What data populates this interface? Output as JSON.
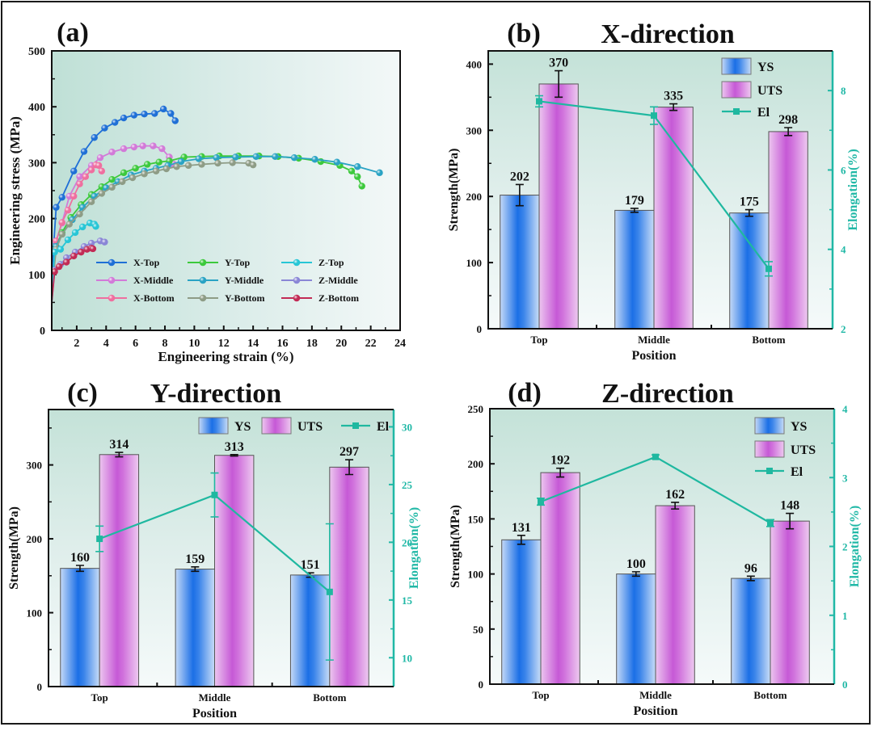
{
  "chart_data": [
    {
      "id": "a",
      "type": "line",
      "panel_label": "(a)",
      "title": "",
      "xlabel": "Engineering strain (%)",
      "ylabel": "Engineering stress (MPa)",
      "xlim": [
        0.3,
        24
      ],
      "ylim": [
        0,
        500
      ],
      "xticks": [
        2,
        4,
        6,
        8,
        10,
        12,
        14,
        16,
        18,
        20,
        22,
        24
      ],
      "yticks": [
        0,
        100,
        200,
        300,
        400,
        500
      ],
      "legend_position": "bottom-center, 3 columns",
      "series": [
        {
          "name": "X-Top",
          "color": "#1f6fd6",
          "x": [
            0.3,
            0.6,
            1.0,
            1.8,
            2.5,
            3.2,
            3.9,
            4.6,
            5.2,
            5.9,
            6.6,
            7.3,
            7.9,
            8.4,
            8.7
          ],
          "y": [
            100,
            220,
            238,
            285,
            320,
            345,
            362,
            372,
            380,
            385,
            387,
            388,
            396,
            388,
            375
          ]
        },
        {
          "name": "X-Middle",
          "color": "#d27ad8",
          "x": [
            0.3,
            0.6,
            1.0,
            1.5,
            2.2,
            3.0,
            3.6,
            4.4,
            5.2,
            5.9,
            6.5,
            7.2,
            7.8,
            8.3,
            8.6
          ],
          "y": [
            60,
            160,
            192,
            240,
            275,
            295,
            309,
            319,
            325,
            328,
            330,
            330,
            325,
            310,
            297
          ]
        },
        {
          "name": "X-Bottom",
          "color": "#ef6f9f",
          "x": [
            0.3,
            0.6,
            1.0,
            1.4,
            1.8,
            2.2,
            2.6,
            3.0,
            3.3,
            3.5,
            3.7
          ],
          "y": [
            50,
            160,
            193,
            215,
            240,
            262,
            275,
            287,
            296,
            295,
            285
          ]
        },
        {
          "name": "Y-Top",
          "color": "#3cc93c",
          "x": [
            0.3,
            0.6,
            1.0,
            1.6,
            2.3,
            3.0,
            3.7,
            4.4,
            5.2,
            6.0,
            6.8,
            7.6,
            8.3,
            9.3,
            10.5,
            11.7,
            13.0,
            14.4,
            15.7,
            17.1,
            18.6,
            19.9,
            20.7,
            21.1,
            21.4
          ],
          "y": [
            80,
            150,
            175,
            202,
            225,
            243,
            257,
            270,
            282,
            290,
            297,
            301,
            303,
            310,
            311,
            312,
            312,
            312,
            311,
            308,
            302,
            295,
            285,
            275,
            258
          ]
        },
        {
          "name": "Y-Middle",
          "color": "#2aa3c4",
          "x": [
            0.3,
            0.6,
            1.0,
            1.7,
            2.4,
            3.2,
            4.0,
            4.8,
            5.7,
            6.6,
            7.4,
            8.2,
            9.1,
            10.3,
            11.5,
            12.8,
            14.2,
            15.5,
            16.8,
            18.2,
            19.7,
            21.1,
            22.6
          ],
          "y": [
            75,
            150,
            172,
            198,
            220,
            240,
            255,
            266,
            278,
            285,
            290,
            295,
            302,
            307,
            309,
            310,
            311,
            311,
            309,
            306,
            301,
            293,
            282
          ]
        },
        {
          "name": "Y-Bottom",
          "color": "#8e9c86",
          "x": [
            0.3,
            0.6,
            1.0,
            1.5,
            2.2,
            3.0,
            3.7,
            4.4,
            5.1,
            5.8,
            6.6,
            7.4,
            8.1,
            8.8,
            9.6,
            10.5,
            11.6,
            12.6,
            13.7,
            14.0
          ],
          "y": [
            70,
            145,
            172,
            190,
            208,
            230,
            245,
            256,
            266,
            273,
            280,
            285,
            289,
            293,
            295,
            297,
            299,
            300,
            299,
            296
          ]
        },
        {
          "name": "Z-Top",
          "color": "#27c6d6",
          "x": [
            0.3,
            0.5,
            0.9,
            1.4,
            1.9,
            2.4,
            2.9,
            3.2,
            3.3
          ],
          "y": [
            60,
            140,
            145,
            162,
            175,
            185,
            192,
            190,
            186
          ]
        },
        {
          "name": "Z-Middle",
          "color": "#8a86d6",
          "x": [
            0.3,
            0.5,
            0.9,
            1.3,
            1.9,
            2.5,
            3.0,
            3.6,
            3.9
          ],
          "y": [
            50,
            108,
            118,
            130,
            140,
            150,
            156,
            160,
            158
          ]
        },
        {
          "name": "Z-Bottom",
          "color": "#c22b55",
          "x": [
            0.3,
            0.5,
            0.8,
            1.3,
            1.8,
            2.3,
            2.7,
            3.0,
            3.1
          ],
          "y": [
            50,
            105,
            114,
            122,
            133,
            140,
            145,
            147,
            146
          ]
        }
      ]
    },
    {
      "id": "b",
      "type": "bar",
      "panel_label": "(b)",
      "title": "X-direction",
      "categories": [
        "Top",
        "Middle",
        "Bottom"
      ],
      "xlabel": "Position",
      "ylabel": "Strength(MPa)",
      "y2label": "Elongation(%)",
      "ylim": [
        0,
        420
      ],
      "yticks": [
        0,
        100,
        200,
        300,
        400
      ],
      "y2lim": [
        2,
        9
      ],
      "y2ticks": [
        2,
        4,
        6,
        8
      ],
      "legend_position": "top-right, vertical",
      "series": [
        {
          "name": "YS",
          "kind": "bar",
          "values": [
            202,
            179,
            175
          ],
          "errors": [
            16,
            3,
            5
          ]
        },
        {
          "name": "UTS",
          "kind": "bar",
          "values": [
            370,
            335,
            298
          ],
          "errors": [
            20,
            5,
            6
          ]
        },
        {
          "name": "El",
          "kind": "line",
          "axis": "right",
          "values": [
            7.73,
            7.37,
            3.51
          ],
          "errors": [
            0.14,
            0.22,
            0.18
          ]
        }
      ]
    },
    {
      "id": "c",
      "type": "bar",
      "panel_label": "(c)",
      "title": "Y-direction",
      "categories": [
        "Top",
        "Middle",
        "Bottom"
      ],
      "xlabel": "Position",
      "ylabel": "Strength(MPa)",
      "y2label": "Elongation(%)",
      "ylim": [
        0,
        375
      ],
      "yticks": [
        0,
        100,
        200,
        300
      ],
      "y2lim": [
        7.5,
        31.5
      ],
      "y2ticks": [
        10,
        15,
        20,
        25,
        30
      ],
      "legend_position": "top-right, horizontal",
      "series": [
        {
          "name": "YS",
          "kind": "bar",
          "values": [
            160,
            159,
            151
          ],
          "errors": [
            4,
            3,
            3
          ]
        },
        {
          "name": "UTS",
          "kind": "bar",
          "values": [
            314,
            313,
            297
          ],
          "errors": [
            3,
            1,
            10
          ]
        },
        {
          "name": "El",
          "kind": "line",
          "axis": "right",
          "values": [
            20.3,
            24.1,
            15.7
          ],
          "errors": [
            1.1,
            1.9,
            5.9
          ]
        }
      ]
    },
    {
      "id": "d",
      "type": "bar",
      "panel_label": "(d)",
      "title": "Z-direction",
      "categories": [
        "Top",
        "Middle",
        "Bottom"
      ],
      "xlabel": "Position",
      "ylabel": "Strength(MPa)",
      "y2label": "Elongation(%)",
      "ylim": [
        0,
        250
      ],
      "yticks": [
        0,
        50,
        100,
        150,
        200,
        250
      ],
      "y2lim": [
        0,
        4
      ],
      "y2ticks": [
        0,
        1,
        2,
        3,
        4
      ],
      "legend_position": "top-right, vertical",
      "series": [
        {
          "name": "YS",
          "kind": "bar",
          "values": [
            131,
            100,
            96
          ],
          "errors": [
            4,
            2,
            2
          ]
        },
        {
          "name": "UTS",
          "kind": "bar",
          "values": [
            192,
            162,
            148
          ],
          "errors": [
            4,
            3,
            7
          ]
        },
        {
          "name": "El",
          "kind": "line",
          "axis": "right",
          "values": [
            2.65,
            3.3,
            2.34
          ],
          "errors": [
            0.05,
            0.03,
            0.05
          ]
        }
      ]
    }
  ],
  "colors": {
    "ys_bar": "#1b6fe6",
    "uts_bar": "#c659d6",
    "el_line": "#1fb8a0",
    "axis_right": "#20b8a6",
    "plot_bg_top": "#c7e3da",
    "plot_bg_bottom": "#f4f9f8"
  }
}
